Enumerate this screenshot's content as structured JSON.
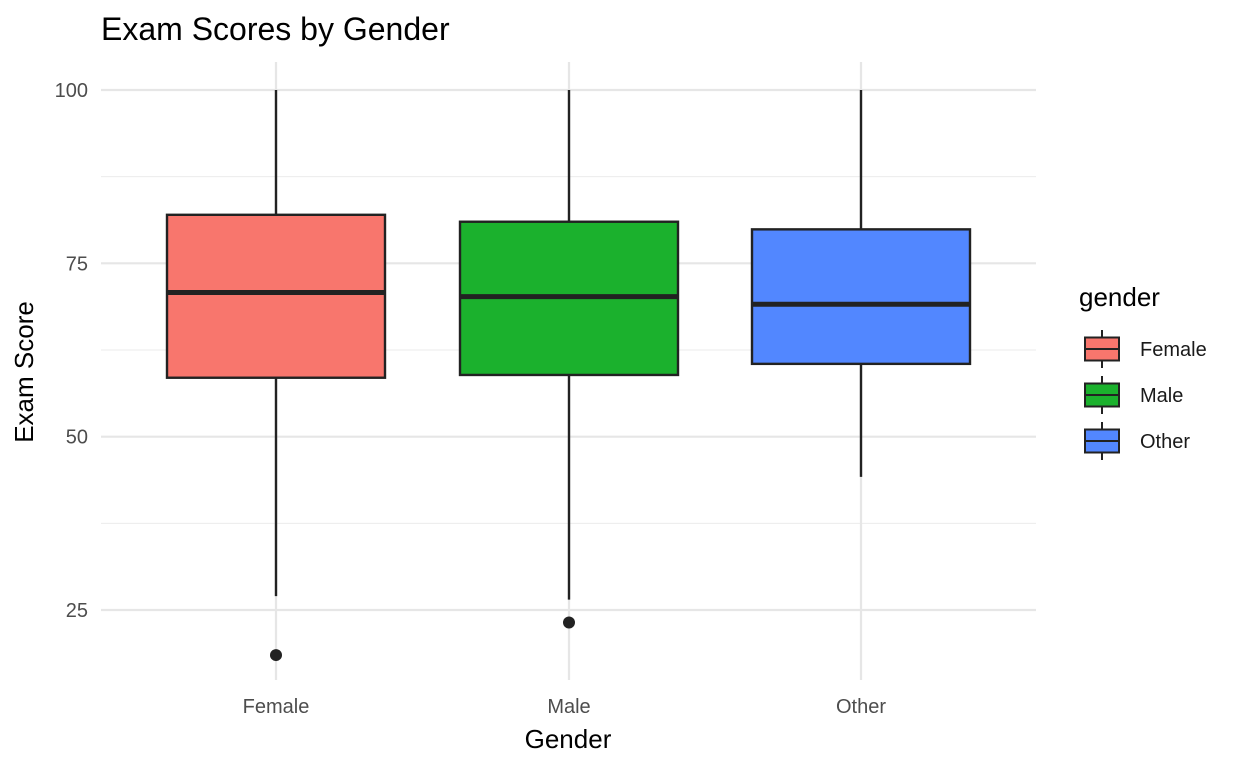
{
  "chart_data": {
    "type": "boxplot",
    "title": "Exam Scores by Gender",
    "xlabel": "Gender",
    "ylabel": "Exam Score",
    "ylim": [
      15,
      104
    ],
    "yticks": [
      25,
      50,
      75,
      100
    ],
    "ytick_labels": [
      "25",
      "50",
      "75",
      "100"
    ],
    "grid": true,
    "legend": {
      "title": "gender",
      "position": "right"
    },
    "categories": [
      "Female",
      "Male",
      "Other"
    ],
    "series": [
      {
        "name": "Female",
        "color": "#f8766d",
        "whisker_low": 27,
        "q1": 58.5,
        "median": 70.8,
        "q3": 82,
        "whisker_high": 100,
        "outliers": [
          18.5
        ]
      },
      {
        "name": "Male",
        "color": "#1bb12d",
        "whisker_low": 26.5,
        "q1": 58.9,
        "median": 70.2,
        "q3": 81,
        "whisker_high": 100,
        "outliers": [
          23.2
        ]
      },
      {
        "name": "Other",
        "color": "#5287ff",
        "whisker_low": 44.2,
        "q1": 60.5,
        "median": 69.1,
        "q3": 79.9,
        "whisker_high": 100,
        "outliers": []
      }
    ]
  }
}
